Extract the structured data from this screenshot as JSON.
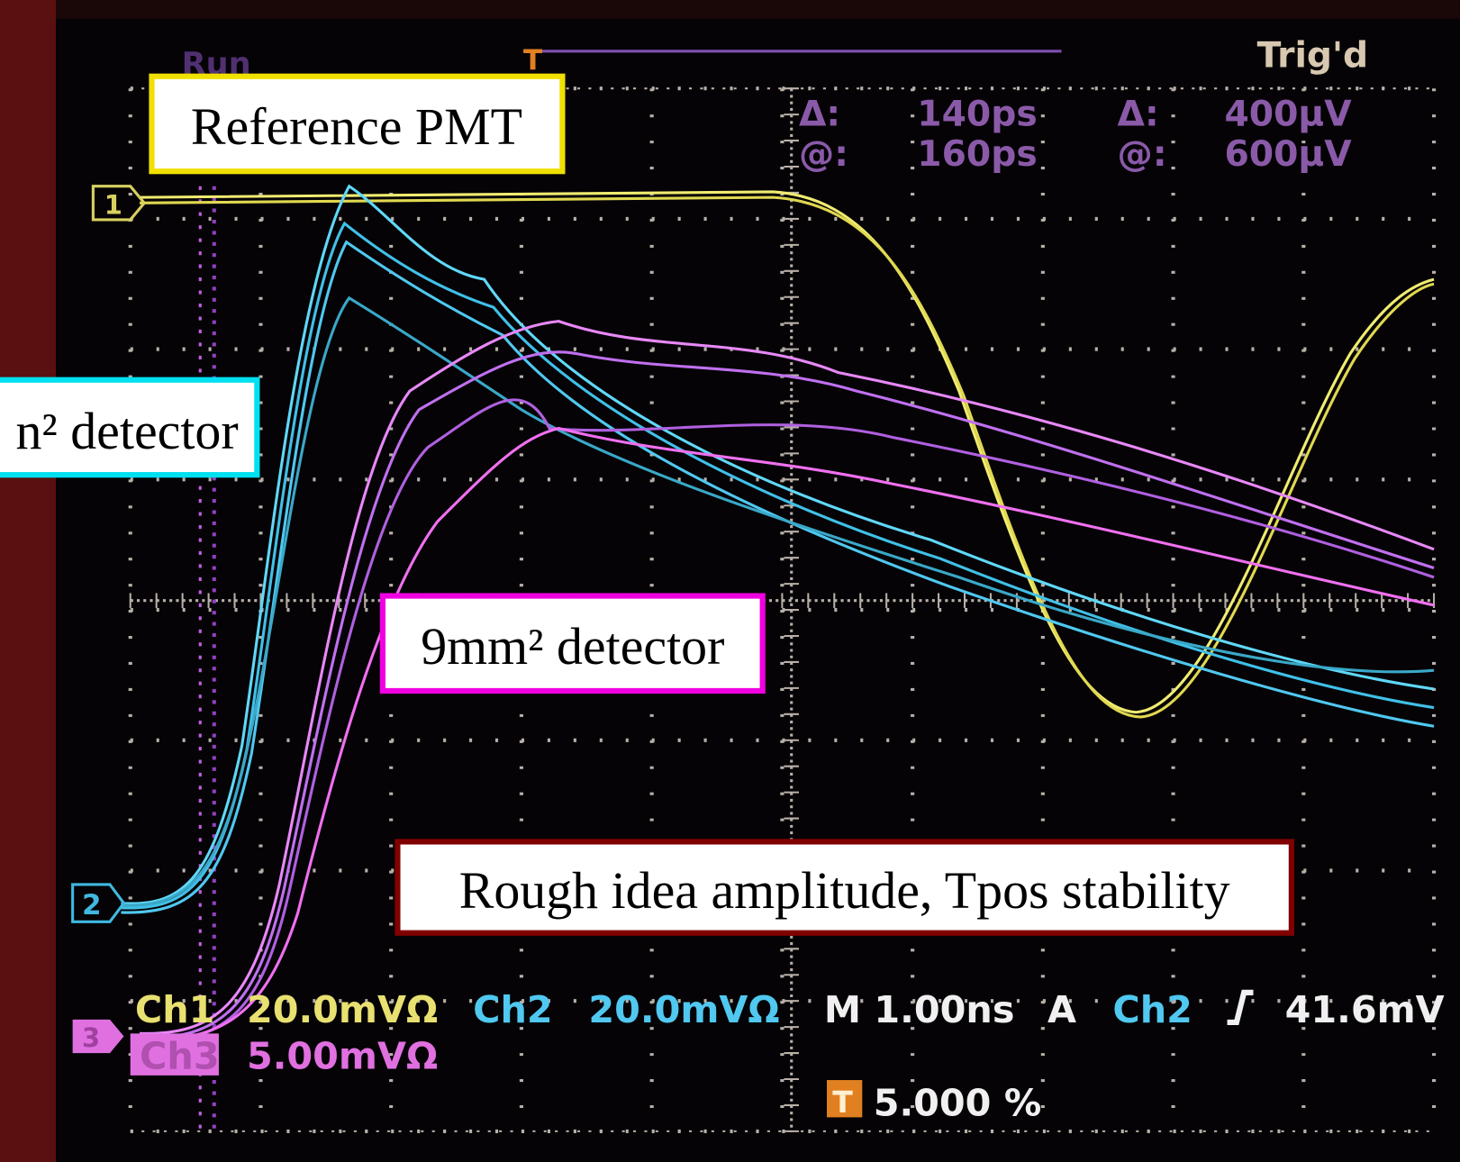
{
  "header": {
    "run": "Run",
    "trigger_position_marker": "T",
    "trigger_state": "Trig'd"
  },
  "measurements": {
    "time_delta_label": "Δ:",
    "time_delta": "140ps",
    "time_at_label": "@:",
    "time_at": "160ps",
    "volt_delta_label": "Δ:",
    "volt_delta": "400µV",
    "volt_at_label": "@:",
    "volt_at": "600µV"
  },
  "channel_markers": [
    "1",
    "2",
    "3"
  ],
  "annotations": {
    "reference": "Reference PMT",
    "left_detector": "n² detector",
    "detector_9mm": "9mm² detector",
    "note": "Rough idea amplitude, Tpos stability"
  },
  "status": {
    "ch1_label": "Ch1",
    "ch1_scale": "20.0mVΩ",
    "ch2_label": "Ch2",
    "ch2_scale": "20.0mVΩ",
    "timebase": "M 1.00ns",
    "trigger_mode": "A",
    "trigger_source": "Ch2",
    "trigger_level": "41.6mV",
    "ch3_label": "Ch3",
    "ch3_scale": "5.00mVΩ",
    "trigger_icon": "T",
    "trigger_percent": "5.000 %"
  }
}
